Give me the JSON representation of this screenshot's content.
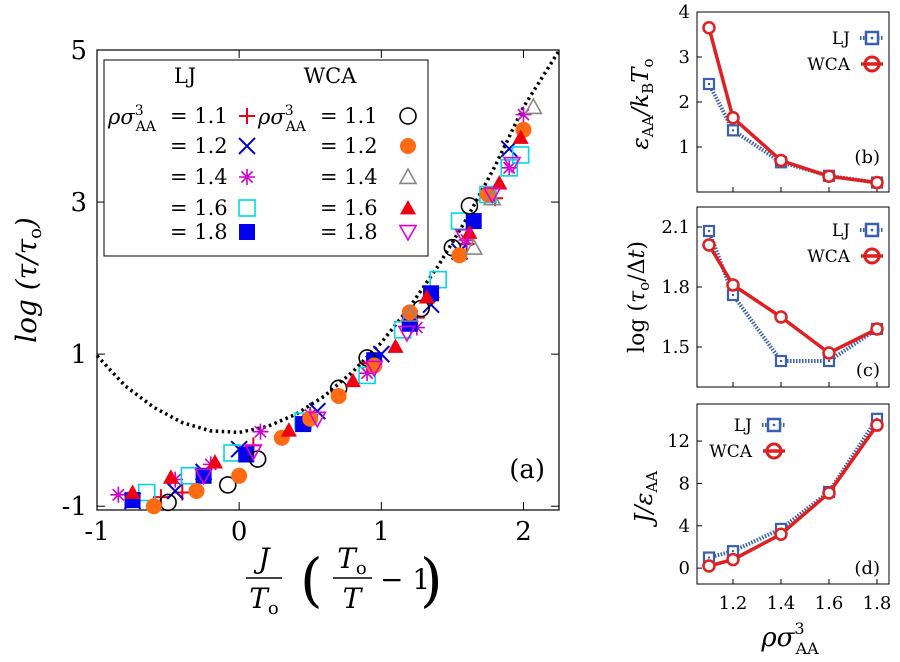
{
  "chart_data": [
    {
      "panel": "a",
      "type": "scatter",
      "panel_label": "(a)",
      "xlabel": "J/T_o (T_o/T − 1)",
      "ylabel": "log (τ/τ_o)",
      "xlim": [
        -1,
        2.25
      ],
      "ylim": [
        -1.05,
        5
      ],
      "x_ticks": [
        "-1",
        "0",
        "1",
        "2"
      ],
      "y_ticks": [
        "-1",
        "1",
        "3",
        "5"
      ],
      "x_tick_values": [
        -1,
        0,
        1,
        2
      ],
      "y_tick_values": [
        -1,
        1,
        3,
        5
      ],
      "legend": {
        "position": "top-left",
        "header_left": "LJ",
        "header_right": "WCA",
        "row_prefix": "ρσ³AA",
        "row_labels": [
          "= 1.1",
          "= 1.2",
          "= 1.4",
          "= 1.6",
          "= 1.8"
        ]
      },
      "curve": {
        "style": "dotted",
        "color": "#000000",
        "x": [
          -1.0,
          -0.8,
          -0.6,
          -0.4,
          -0.2,
          0.0,
          0.2,
          0.4,
          0.6,
          0.8,
          1.0,
          1.2,
          1.4,
          1.6,
          1.8,
          2.0,
          2.25
        ],
        "y": [
          0.98,
          0.58,
          0.3,
          0.1,
          -0.01,
          -0.03,
          0.05,
          0.21,
          0.45,
          0.77,
          1.15,
          1.62,
          2.16,
          2.78,
          3.47,
          4.25,
          4.99
        ]
      },
      "series": [
        {
          "model": "LJ",
          "density": "1.1",
          "marker": "plus",
          "color": "#e8001c",
          "x": [
            -0.55,
            -0.4,
            0.1,
            0.5,
            0.9,
            1.25,
            1.6,
            1.8
          ],
          "y": [
            -0.88,
            -0.82,
            -0.2,
            0.18,
            0.88,
            1.48,
            2.45,
            3.05
          ]
        },
        {
          "model": "LJ",
          "density": "1.2",
          "marker": "cross",
          "color": "#0000cc",
          "x": [
            -0.75,
            -0.45,
            -0.25,
            0.0,
            0.55,
            1.0,
            1.35,
            1.55,
            1.9
          ],
          "y": [
            -0.93,
            -0.8,
            -0.55,
            -0.25,
            0.25,
            1.0,
            1.65,
            2.35,
            3.7
          ]
        },
        {
          "model": "LJ",
          "density": "1.4",
          "marker": "star",
          "color": "#cc00cc",
          "x": [
            -0.85,
            -0.45,
            -0.2,
            0.15,
            0.5,
            0.9,
            1.25,
            1.6,
            1.9,
            2.0
          ],
          "y": [
            -0.85,
            -0.65,
            -0.45,
            -0.02,
            0.2,
            0.75,
            1.35,
            2.5,
            3.45,
            4.15
          ]
        },
        {
          "model": "LJ",
          "density": "1.6",
          "marker": "square-open",
          "color": "#00d8e8",
          "x": [
            -0.65,
            -0.35,
            -0.05,
            0.45,
            0.9,
            1.15,
            1.4,
            1.55,
            1.75,
            1.9,
            1.98
          ],
          "y": [
            -0.82,
            -0.6,
            -0.3,
            0.12,
            0.72,
            1.32,
            1.98,
            2.75,
            3.1,
            3.45,
            3.62
          ]
        },
        {
          "model": "LJ",
          "density": "1.8",
          "marker": "square-filled",
          "color": "#0000ee",
          "x": [
            -0.75,
            -0.25,
            0.05,
            0.45,
            0.95,
            1.2,
            1.35,
            1.65
          ],
          "y": [
            -0.92,
            -0.6,
            -0.32,
            0.08,
            0.92,
            1.4,
            1.8,
            2.75
          ]
        },
        {
          "model": "WCA",
          "density": "1.1",
          "marker": "circle-open",
          "color": "#000000",
          "x": [
            -0.5,
            -0.08,
            0.13,
            0.7,
            0.9,
            1.28,
            1.5,
            1.62
          ],
          "y": [
            -0.95,
            -0.72,
            -0.38,
            0.55,
            0.95,
            1.6,
            2.4,
            2.95
          ]
        },
        {
          "model": "WCA",
          "density": "1.2",
          "marker": "circle-filled",
          "color": "#ff6a13",
          "x": [
            -0.6,
            -0.3,
            0.0,
            0.3,
            0.5,
            0.7,
            0.95,
            1.2,
            1.55,
            1.75,
            2.0
          ],
          "y": [
            -1.0,
            -0.8,
            -0.6,
            -0.1,
            0.15,
            0.45,
            0.85,
            1.55,
            2.3,
            3.1,
            3.95
          ]
        },
        {
          "model": "WCA",
          "density": "1.4",
          "marker": "triangle-open",
          "color": "#888888",
          "x": [
            1.2,
            1.65,
            1.78,
            2.07
          ],
          "y": [
            1.52,
            2.4,
            3.05,
            4.25
          ]
        },
        {
          "model": "WCA",
          "density": "1.6",
          "marker": "triangle-filled",
          "color": "#ee0011",
          "x": [
            -0.75,
            -0.48,
            -0.17,
            0.35,
            0.8,
            1.1,
            1.32,
            1.62,
            1.83,
            1.98
          ],
          "y": [
            -0.82,
            -0.62,
            -0.42,
            0.0,
            0.65,
            1.1,
            1.75,
            2.6,
            3.25,
            3.85
          ]
        },
        {
          "model": "WCA",
          "density": "1.8",
          "marker": "triangle-down-open",
          "color": "#dd00dd",
          "x": [
            -0.25,
            0.1,
            0.55,
            0.95,
            1.18,
            1.58,
            1.78,
            1.92
          ],
          "y": [
            -0.6,
            -0.28,
            0.15,
            0.82,
            1.28,
            2.55,
            3.1,
            3.5
          ]
        }
      ]
    },
    {
      "panel": "b",
      "type": "line",
      "panel_label": "(b)",
      "ylabel": "ε_AA/k_B T_o",
      "ylim": [
        0,
        4
      ],
      "xlim": [
        1.05,
        1.85
      ],
      "y_ticks": [
        "1",
        "2",
        "3",
        "4"
      ],
      "y_tick_values": [
        1,
        2,
        3,
        4
      ],
      "x": [
        1.1,
        1.2,
        1.4,
        1.6,
        1.8
      ],
      "series": [
        {
          "name": "LJ",
          "style": "dotted",
          "marker": "square-open",
          "color": "#3a5fb0",
          "values": [
            2.4,
            1.37,
            0.66,
            0.36,
            0.21
          ]
        },
        {
          "name": "WCA",
          "style": "solid",
          "marker": "circle-open",
          "color": "#e02020",
          "values": [
            3.65,
            1.65,
            0.7,
            0.35,
            0.21
          ]
        }
      ]
    },
    {
      "panel": "c",
      "type": "line",
      "panel_label": "(c)",
      "ylabel": "log (τ_o/Δt)",
      "ylim": [
        1.3,
        2.2
      ],
      "xlim": [
        1.05,
        1.85
      ],
      "y_ticks": [
        "1.5",
        "1.8",
        "2.1"
      ],
      "y_tick_values": [
        1.5,
        1.8,
        2.1
      ],
      "x": [
        1.1,
        1.2,
        1.4,
        1.6,
        1.8
      ],
      "series": [
        {
          "name": "LJ",
          "style": "dotted",
          "marker": "square-open",
          "color": "#3a5fb0",
          "values": [
            2.08,
            1.76,
            1.43,
            1.43,
            1.59
          ]
        },
        {
          "name": "WCA",
          "style": "solid",
          "marker": "circle-open",
          "color": "#e02020",
          "values": [
            2.01,
            1.81,
            1.65,
            1.47,
            1.59
          ]
        }
      ]
    },
    {
      "panel": "d",
      "type": "line",
      "panel_label": "(d)",
      "xlabel": "ρσ³AA",
      "ylabel": "J/ε_AA",
      "ylim": [
        -1.5,
        15.5
      ],
      "xlim": [
        1.05,
        1.85
      ],
      "y_ticks": [
        "0",
        "4",
        "8",
        "12"
      ],
      "y_tick_values": [
        0,
        4,
        8,
        12
      ],
      "x_ticks": [
        "1.2",
        "1.4",
        "1.6",
        "1.8"
      ],
      "x_tick_values": [
        1.2,
        1.4,
        1.6,
        1.8
      ],
      "x": [
        1.1,
        1.2,
        1.4,
        1.6,
        1.8
      ],
      "series": [
        {
          "name": "LJ",
          "style": "dotted",
          "marker": "square-open",
          "color": "#3a5fb0",
          "values": [
            1.0,
            1.6,
            3.7,
            7.2,
            14.1
          ]
        },
        {
          "name": "WCA",
          "style": "solid",
          "marker": "circle-open",
          "color": "#e02020",
          "values": [
            0.2,
            0.8,
            3.2,
            7.1,
            13.5
          ]
        }
      ]
    }
  ]
}
